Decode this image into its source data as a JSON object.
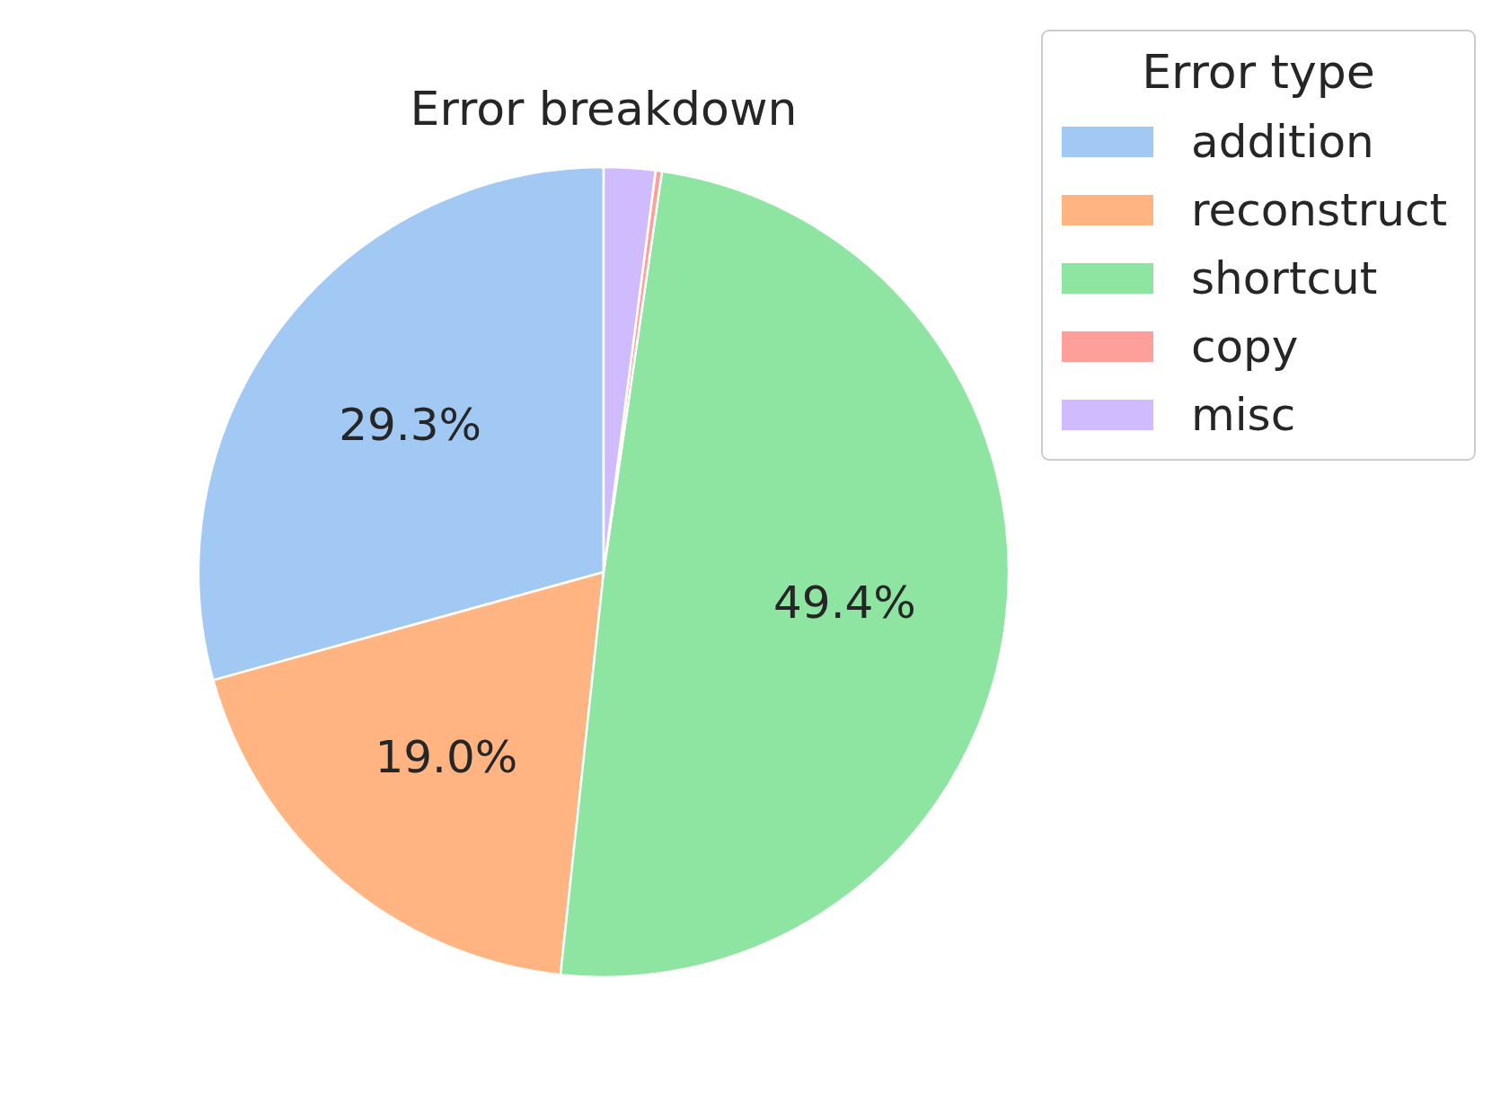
{
  "chart_data": {
    "type": "pie",
    "title": "Error breakdown",
    "legend_title": "Error type",
    "legend": "top right",
    "categories": [
      "addition",
      "reconstruct",
      "shortcut",
      "copy",
      "misc"
    ],
    "values": [
      29.3,
      19.0,
      49.4,
      0.25,
      2.05
    ],
    "colors": [
      "#a1c9f4",
      "#ffb482",
      "#8de5a1",
      "#ff9f9b",
      "#d0bbff"
    ],
    "value_labels": [
      "29.3%",
      "19.0%",
      "49.4%",
      null,
      null
    ]
  }
}
